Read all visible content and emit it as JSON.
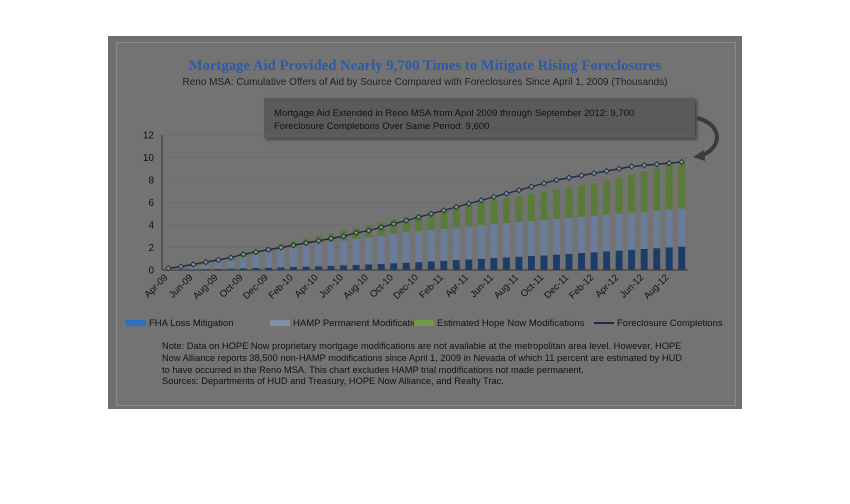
{
  "chart_data": {
    "type": "bar",
    "title": "Mortgage Aid Provided Nearly 9,700 Times to Mitigate Rising Foreclosures",
    "subtitle": "Reno MSA: Cumulative Offers of Aid by Source Compared with Foreclosures Since April 1, 2009  (Thousands)",
    "callout": [
      "Mortgage Aid Extended in Reno MSA from April 2009 through September 2012: 9,700",
      "Foreclosure Completions Over Same Period: 9,600"
    ],
    "ylim": [
      0,
      12
    ],
    "yticks": [
      "0",
      "2",
      "4",
      "6",
      "8",
      "10",
      "12"
    ],
    "categories": [
      "Apr-09",
      "May-09",
      "Jun-09",
      "Jul-09",
      "Aug-09",
      "Sep-09",
      "Oct-09",
      "Nov-09",
      "Dec-09",
      "Jan-10",
      "Feb-10",
      "Mar-10",
      "Apr-10",
      "May-10",
      "Jun-10",
      "Jul-10",
      "Aug-10",
      "Sep-10",
      "Oct-10",
      "Nov-10",
      "Dec-10",
      "Jan-11",
      "Feb-11",
      "Mar-11",
      "Apr-11",
      "May-11",
      "Jun-11",
      "Jul-11",
      "Aug-11",
      "Sep-11",
      "Oct-11",
      "Nov-11",
      "Dec-11",
      "Jan-12",
      "Feb-12",
      "Mar-12",
      "Apr-12",
      "May-12",
      "Jun-12",
      "Jul-12",
      "Aug-12",
      "Sep-12"
    ],
    "tick_labels": [
      "Apr-09",
      "Jun-09",
      "Aug-09",
      "Oct-09",
      "Dec-09",
      "Feb-10",
      "Apr-10",
      "Jun-10",
      "Aug-10",
      "Oct-10",
      "Dec-10",
      "Feb-11",
      "Apr-11",
      "Jun-11",
      "Aug-11",
      "Oct-11",
      "Dec-11",
      "Feb-12",
      "Apr-12",
      "Jun-12",
      "Aug-12"
    ],
    "series": [
      {
        "name": "FHA Loss Mitigation",
        "kind": "bar",
        "color": "#1e3c68",
        "values": [
          0.02,
          0.04,
          0.06,
          0.08,
          0.1,
          0.12,
          0.15,
          0.18,
          0.2,
          0.23,
          0.27,
          0.3,
          0.34,
          0.38,
          0.42,
          0.46,
          0.5,
          0.55,
          0.6,
          0.65,
          0.7,
          0.76,
          0.82,
          0.88,
          0.94,
          1.0,
          1.06,
          1.12,
          1.18,
          1.24,
          1.3,
          1.37,
          1.44,
          1.51,
          1.58,
          1.65,
          1.72,
          1.8,
          1.87,
          1.94,
          2.01,
          2.08
        ]
      },
      {
        "name": "HAMP Permanent Modifications",
        "kind": "bar",
        "color": "#6b7c98",
        "values": [
          0.05,
          0.12,
          0.25,
          0.4,
          0.6,
          0.8,
          1.0,
          1.2,
          1.4,
          1.6,
          1.75,
          1.9,
          2.0,
          2.1,
          2.2,
          2.3,
          2.4,
          2.5,
          2.6,
          2.7,
          2.75,
          2.8,
          2.85,
          2.9,
          2.95,
          3.0,
          3.03,
          3.06,
          3.09,
          3.12,
          3.15,
          3.18,
          3.2,
          3.22,
          3.24,
          3.26,
          3.28,
          3.3,
          3.32,
          3.34,
          3.36,
          3.38
        ]
      },
      {
        "name": "Estimated Hope Now Modifications",
        "kind": "bar",
        "color": "#5a7a3a",
        "values": [
          0.05,
          0.1,
          0.15,
          0.2,
          0.25,
          0.3,
          0.35,
          0.4,
          0.45,
          0.5,
          0.55,
          0.6,
          0.7,
          0.8,
          0.9,
          1.0,
          1.1,
          1.2,
          1.3,
          1.4,
          1.5,
          1.6,
          1.7,
          1.8,
          1.9,
          2.0,
          2.1,
          2.2,
          2.3,
          2.4,
          2.5,
          2.6,
          2.7,
          2.8,
          2.9,
          3.0,
          3.2,
          3.4,
          3.6,
          3.8,
          4.0,
          4.2
        ]
      },
      {
        "name": "Foreclosure Completions",
        "kind": "line",
        "color": "#1c2c44",
        "values": [
          0.15,
          0.3,
          0.5,
          0.7,
          0.9,
          1.1,
          1.4,
          1.6,
          1.8,
          2.0,
          2.2,
          2.4,
          2.6,
          2.8,
          3.0,
          3.3,
          3.5,
          3.8,
          4.1,
          4.4,
          4.7,
          5.0,
          5.3,
          5.6,
          5.9,
          6.2,
          6.5,
          6.8,
          7.1,
          7.4,
          7.7,
          8.0,
          8.2,
          8.4,
          8.6,
          8.8,
          9.0,
          9.2,
          9.3,
          9.4,
          9.5,
          9.6
        ]
      }
    ],
    "legend_position": "bottom",
    "note": [
      "Note: Data on HOPE Now proprietary mortgage modifications are not available at the metropolitan area level. However, HOPE",
      "Now Alliance reports 38,500 non-HAMP modifications since April 1, 2009 in Nevada of which 11 percent are estimated by HUD",
      "to have occurred in the Reno MSA. This chart excludes HAMP trial modifications not made permanent.",
      "Sources: Departments of HUD and Treasury, HOPE Now Alliance, and Realty Trac."
    ]
  }
}
